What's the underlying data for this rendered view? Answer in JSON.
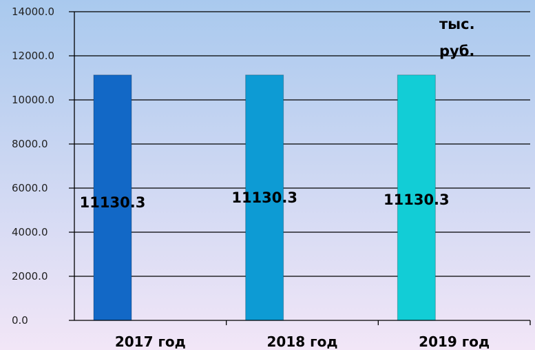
{
  "chart_data": {
    "type": "bar",
    "categories": [
      "2017 год",
      "2018 год",
      "2019 год"
    ],
    "values": [
      11130.3,
      11130.3,
      11130.3
    ],
    "value_labels": [
      "11130.3",
      "11130.3",
      "11130.3"
    ],
    "tick_labels": [
      "0.0",
      "2000.0",
      "4000.0",
      "6000.0",
      "8000.0",
      "10000.0",
      "12000.0",
      "14000.0"
    ],
    "ylim": [
      0,
      14000
    ],
    "unit_lines": [
      "тыс.",
      "руб."
    ],
    "title": "",
    "xlabel": "",
    "ylabel": "",
    "grid": true,
    "legend": "none",
    "colors": {
      "bars": [
        "#1268C6",
        "#0D9BD4",
        "#12CDD6"
      ],
      "background_top": "#A9C9EE",
      "background_bottom": "#F2E6F7",
      "gridline": "#000000"
    }
  }
}
